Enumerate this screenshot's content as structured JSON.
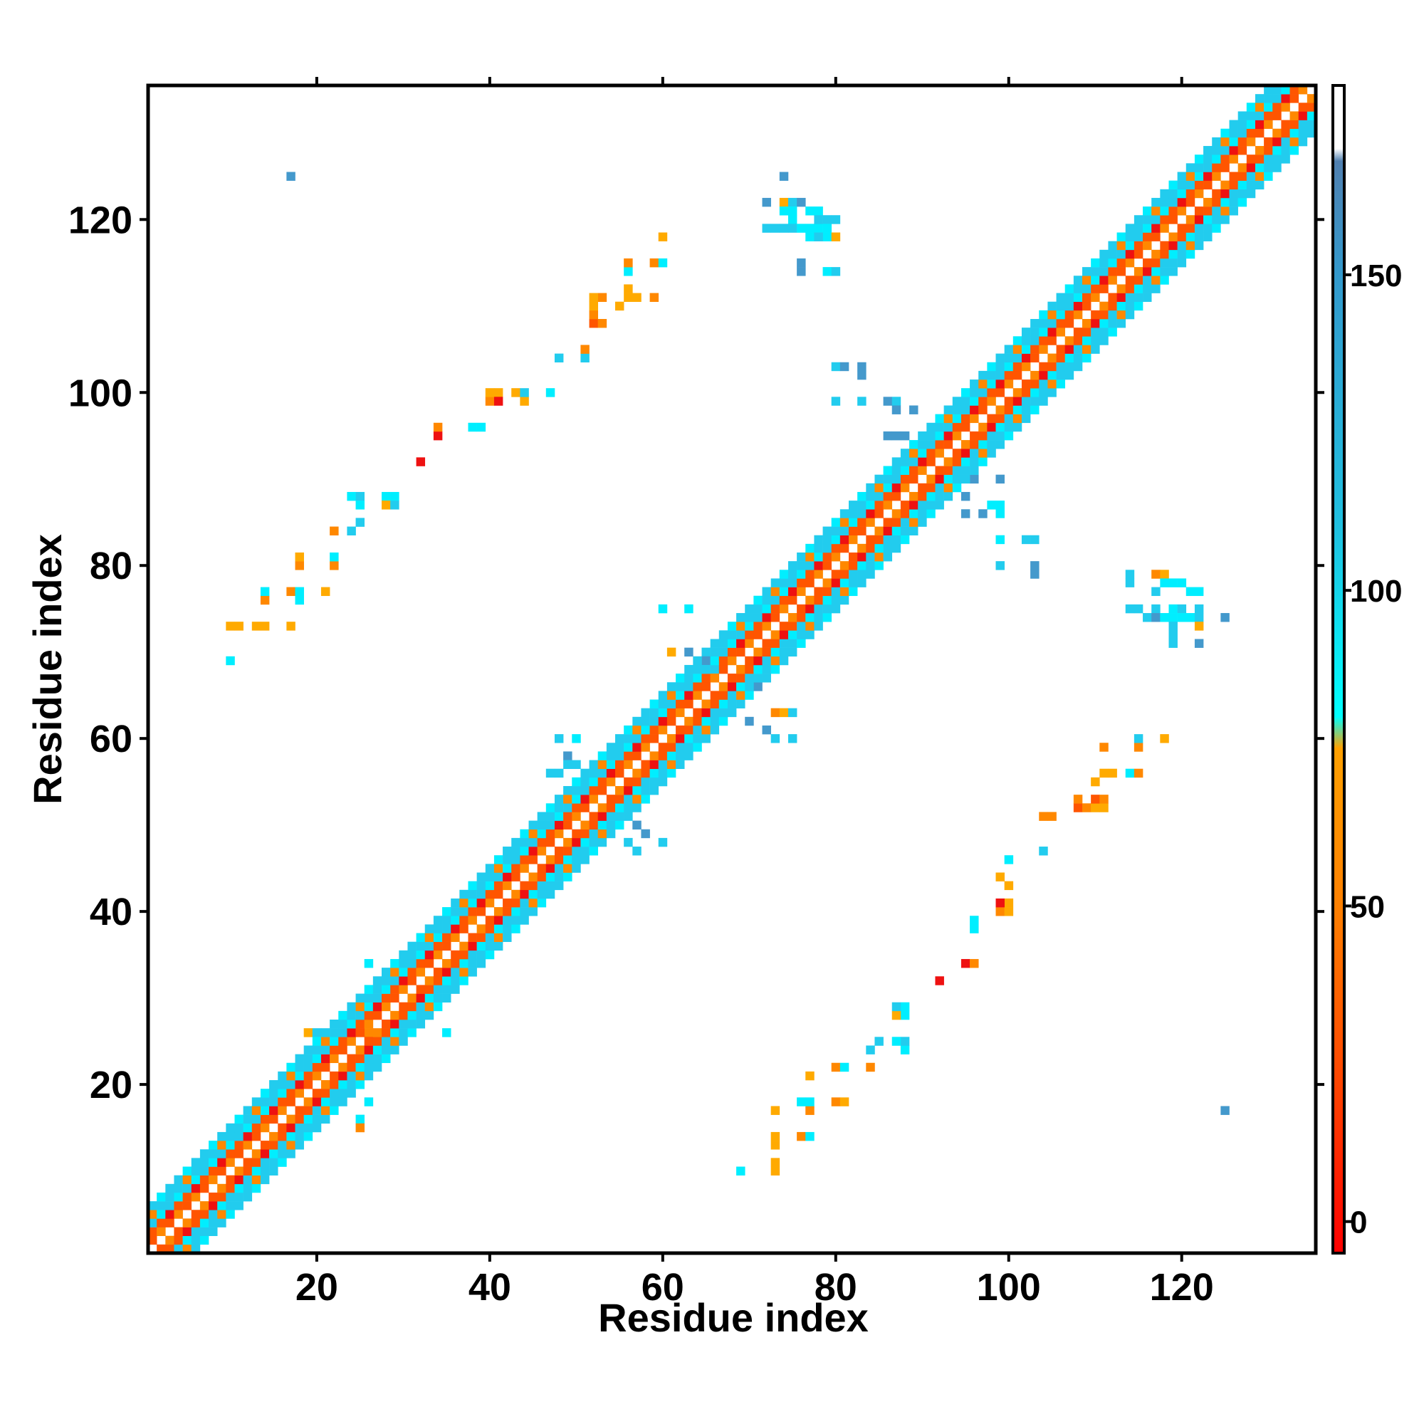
{
  "chart_data": {
    "type": "heatmap",
    "title": "",
    "xlabel": "Residue index",
    "ylabel": "Residue index",
    "xlim": [
      1,
      135
    ],
    "ylim": [
      1,
      135
    ],
    "xticks": [
      20,
      40,
      60,
      80,
      100,
      120
    ],
    "yticks": [
      20,
      40,
      60,
      80,
      100,
      120
    ],
    "grid": false,
    "colorbar": {
      "ticks": [
        0,
        50,
        100,
        150
      ],
      "range": [
        -5,
        180
      ],
      "stops": [
        {
          "value": -5,
          "color": "#ff0000"
        },
        {
          "value": 20,
          "color": "#ff4000"
        },
        {
          "value": 50,
          "color": "#ff8000"
        },
        {
          "value": 75,
          "color": "#ffa000"
        },
        {
          "value": 80,
          "color": "#00ffff"
        },
        {
          "value": 110,
          "color": "#20c0e0"
        },
        {
          "value": 150,
          "color": "#3399cc"
        },
        {
          "value": 168,
          "color": "#5080b0"
        },
        {
          "value": 170,
          "color": "#ffffff"
        },
        {
          "value": 180,
          "color": "#ffffff"
        }
      ]
    },
    "colors": {
      "red": "#ee1111",
      "orange_red": "#ff5500",
      "orange": "#ff8800",
      "amber": "#ffaa00",
      "cyan": "#00eeff",
      "sky": "#22ccee",
      "steel": "#4499cc"
    },
    "diagonal_band": {
      "description_values": "contacts within |i-j| <= 5, alternating orange/red and cyan",
      "x_range": [
        1,
        135
      ]
    },
    "offdiagonal_contacts": [
      {
        "x": 10,
        "y": 73,
        "c": "amber"
      },
      {
        "x": 11,
        "y": 73,
        "c": "amber"
      },
      {
        "x": 13,
        "y": 73,
        "c": "amber"
      },
      {
        "x": 14,
        "y": 73,
        "c": "amber"
      },
      {
        "x": 17,
        "y": 73,
        "c": "amber"
      },
      {
        "x": 10,
        "y": 69,
        "c": "cyan"
      },
      {
        "x": 14,
        "y": 76,
        "c": "orange"
      },
      {
        "x": 14,
        "y": 77,
        "c": "cyan"
      },
      {
        "x": 17,
        "y": 77,
        "c": "orange"
      },
      {
        "x": 18,
        "y": 77,
        "c": "cyan"
      },
      {
        "x": 18,
        "y": 76,
        "c": "cyan"
      },
      {
        "x": 18,
        "y": 80,
        "c": "orange"
      },
      {
        "x": 18,
        "y": 81,
        "c": "amber"
      },
      {
        "x": 21,
        "y": 77,
        "c": "amber"
      },
      {
        "x": 22,
        "y": 80,
        "c": "orange"
      },
      {
        "x": 22,
        "y": 81,
        "c": "cyan"
      },
      {
        "x": 22,
        "y": 84,
        "c": "orange"
      },
      {
        "x": 24,
        "y": 84,
        "c": "sky"
      },
      {
        "x": 25,
        "y": 85,
        "c": "sky"
      },
      {
        "x": 24,
        "y": 88,
        "c": "cyan"
      },
      {
        "x": 25,
        "y": 88,
        "c": "sky"
      },
      {
        "x": 25,
        "y": 87,
        "c": "cyan"
      },
      {
        "x": 28,
        "y": 88,
        "c": "cyan"
      },
      {
        "x": 29,
        "y": 88,
        "c": "cyan"
      },
      {
        "x": 28,
        "y": 87,
        "c": "amber"
      },
      {
        "x": 29,
        "y": 87,
        "c": "sky"
      },
      {
        "x": 32,
        "y": 92,
        "c": "red"
      },
      {
        "x": 34,
        "y": 95,
        "c": "red"
      },
      {
        "x": 34,
        "y": 96,
        "c": "orange"
      },
      {
        "x": 38,
        "y": 96,
        "c": "cyan"
      },
      {
        "x": 39,
        "y": 96,
        "c": "cyan"
      },
      {
        "x": 40,
        "y": 99,
        "c": "orange"
      },
      {
        "x": 40,
        "y": 100,
        "c": "amber"
      },
      {
        "x": 41,
        "y": 100,
        "c": "amber"
      },
      {
        "x": 41,
        "y": 99,
        "c": "red"
      },
      {
        "x": 43,
        "y": 100,
        "c": "amber"
      },
      {
        "x": 44,
        "y": 99,
        "c": "amber"
      },
      {
        "x": 44,
        "y": 100,
        "c": "sky"
      },
      {
        "x": 47,
        "y": 100,
        "c": "cyan"
      },
      {
        "x": 48,
        "y": 104,
        "c": "sky"
      },
      {
        "x": 51,
        "y": 104,
        "c": "sky"
      },
      {
        "x": 51,
        "y": 105,
        "c": "orange"
      },
      {
        "x": 52,
        "y": 108,
        "c": "orange-red"
      },
      {
        "x": 53,
        "y": 108,
        "c": "orange"
      },
      {
        "x": 52,
        "y": 109,
        "c": "orange"
      },
      {
        "x": 52,
        "y": 110,
        "c": "amber"
      },
      {
        "x": 53,
        "y": 111,
        "c": "orange"
      },
      {
        "x": 52,
        "y": 111,
        "c": "amber"
      },
      {
        "x": 55,
        "y": 110,
        "c": "amber"
      },
      {
        "x": 56,
        "y": 111,
        "c": "amber"
      },
      {
        "x": 56,
        "y": 112,
        "c": "amber"
      },
      {
        "x": 56,
        "y": 114,
        "c": "cyan"
      },
      {
        "x": 56,
        "y": 115,
        "c": "orange"
      },
      {
        "x": 57,
        "y": 111,
        "c": "amber"
      },
      {
        "x": 59,
        "y": 111,
        "c": "orange"
      },
      {
        "x": 59,
        "y": 115,
        "c": "orange"
      },
      {
        "x": 60,
        "y": 115,
        "c": "cyan"
      },
      {
        "x": 60,
        "y": 118,
        "c": "amber"
      },
      {
        "x": 17,
        "y": 125,
        "c": "steel"
      },
      {
        "x": 72,
        "y": 122,
        "c": "steel"
      },
      {
        "x": 74,
        "y": 125,
        "c": "steel"
      },
      {
        "x": 74,
        "y": 122,
        "c": "amber"
      },
      {
        "x": 75,
        "y": 122,
        "c": "sky"
      },
      {
        "x": 76,
        "y": 122,
        "c": "steel"
      },
      {
        "x": 74,
        "y": 121,
        "c": "cyan"
      },
      {
        "x": 75,
        "y": 121,
        "c": "cyan"
      },
      {
        "x": 77,
        "y": 121,
        "c": "cyan"
      },
      {
        "x": 78,
        "y": 121,
        "c": "cyan"
      },
      {
        "x": 75,
        "y": 120,
        "c": "cyan"
      },
      {
        "x": 79,
        "y": 120,
        "c": "sky"
      },
      {
        "x": 72,
        "y": 119,
        "c": "sky"
      },
      {
        "x": 73,
        "y": 119,
        "c": "sky"
      },
      {
        "x": 74,
        "y": 119,
        "c": "sky"
      },
      {
        "x": 75,
        "y": 119,
        "c": "sky"
      },
      {
        "x": 76,
        "y": 119,
        "c": "cyan"
      },
      {
        "x": 77,
        "y": 119,
        "c": "cyan"
      },
      {
        "x": 78,
        "y": 119,
        "c": "cyan"
      },
      {
        "x": 79,
        "y": 119,
        "c": "cyan"
      },
      {
        "x": 77,
        "y": 118,
        "c": "cyan"
      },
      {
        "x": 79,
        "y": 118,
        "c": "cyan"
      },
      {
        "x": 80,
        "y": 118,
        "c": "amber"
      },
      {
        "x": 78,
        "y": 118,
        "c": "sky"
      },
      {
        "x": 76,
        "y": 115,
        "c": "steel"
      },
      {
        "x": 76,
        "y": 114,
        "c": "steel"
      },
      {
        "x": 79,
        "y": 114,
        "c": "cyan"
      },
      {
        "x": 80,
        "y": 114,
        "c": "sky"
      },
      {
        "x": 80,
        "y": 120,
        "c": "sky"
      },
      {
        "x": 78,
        "y": 120,
        "c": "sky"
      },
      {
        "x": 80,
        "y": 103,
        "c": "sky"
      },
      {
        "x": 81,
        "y": 103,
        "c": "steel"
      },
      {
        "x": 83,
        "y": 103,
        "c": "steel"
      },
      {
        "x": 83,
        "y": 102,
        "c": "steel"
      },
      {
        "x": 80,
        "y": 99,
        "c": "sky"
      },
      {
        "x": 83,
        "y": 99,
        "c": "sky"
      },
      {
        "x": 86,
        "y": 99,
        "c": "steel"
      },
      {
        "x": 87,
        "y": 99,
        "c": "sky"
      },
      {
        "x": 87,
        "y": 98,
        "c": "steel"
      },
      {
        "x": 89,
        "y": 98,
        "c": "steel"
      },
      {
        "x": 86,
        "y": 95,
        "c": "steel"
      },
      {
        "x": 87,
        "y": 95,
        "c": "steel"
      },
      {
        "x": 88,
        "y": 95,
        "c": "steel"
      },
      {
        "x": 96,
        "y": 90,
        "c": "steel"
      },
      {
        "x": 99,
        "y": 90,
        "c": "steel"
      },
      {
        "x": 95,
        "y": 88,
        "c": "steel"
      },
      {
        "x": 98,
        "y": 87,
        "c": "cyan"
      },
      {
        "x": 99,
        "y": 87,
        "c": "cyan"
      },
      {
        "x": 95,
        "y": 86,
        "c": "steel"
      },
      {
        "x": 97,
        "y": 86,
        "c": "steel"
      },
      {
        "x": 99,
        "y": 86,
        "c": "cyan"
      },
      {
        "x": 99,
        "y": 83,
        "c": "cyan"
      },
      {
        "x": 102,
        "y": 83,
        "c": "sky"
      },
      {
        "x": 103,
        "y": 83,
        "c": "sky"
      },
      {
        "x": 99,
        "y": 80,
        "c": "sky"
      },
      {
        "x": 103,
        "y": 80,
        "c": "steel"
      },
      {
        "x": 103,
        "y": 79,
        "c": "steel"
      },
      {
        "x": 114,
        "y": 79,
        "c": "sky"
      },
      {
        "x": 117,
        "y": 79,
        "c": "orange"
      },
      {
        "x": 118,
        "y": 79,
        "c": "amber"
      },
      {
        "x": 114,
        "y": 78,
        "c": "sky"
      },
      {
        "x": 118,
        "y": 78,
        "c": "cyan"
      },
      {
        "x": 119,
        "y": 78,
        "c": "cyan"
      },
      {
        "x": 120,
        "y": 78,
        "c": "cyan"
      },
      {
        "x": 117,
        "y": 77,
        "c": "sky"
      },
      {
        "x": 121,
        "y": 77,
        "c": "cyan"
      },
      {
        "x": 122,
        "y": 77,
        "c": "cyan"
      },
      {
        "x": 114,
        "y": 75,
        "c": "sky"
      },
      {
        "x": 115,
        "y": 75,
        "c": "sky"
      },
      {
        "x": 117,
        "y": 75,
        "c": "sky"
      },
      {
        "x": 119,
        "y": 75,
        "c": "cyan"
      },
      {
        "x": 120,
        "y": 75,
        "c": "sky"
      },
      {
        "x": 122,
        "y": 75,
        "c": "sky"
      },
      {
        "x": 116,
        "y": 74,
        "c": "sky"
      },
      {
        "x": 117,
        "y": 74,
        "c": "steel"
      },
      {
        "x": 118,
        "y": 74,
        "c": "cyan"
      },
      {
        "x": 119,
        "y": 74,
        "c": "cyan"
      },
      {
        "x": 120,
        "y": 74,
        "c": "cyan"
      },
      {
        "x": 121,
        "y": 74,
        "c": "cyan"
      },
      {
        "x": 122,
        "y": 74,
        "c": "sky"
      },
      {
        "x": 125,
        "y": 74,
        "c": "steel"
      },
      {
        "x": 119,
        "y": 73,
        "c": "sky"
      },
      {
        "x": 122,
        "y": 73,
        "c": "amber"
      },
      {
        "x": 119,
        "y": 72,
        "c": "sky"
      },
      {
        "x": 119,
        "y": 71,
        "c": "sky"
      },
      {
        "x": 122,
        "y": 71,
        "c": "steel"
      },
      {
        "x": 63,
        "y": 70,
        "c": "steel"
      },
      {
        "x": 60,
        "y": 75,
        "c": "cyan"
      },
      {
        "x": 63,
        "y": 75,
        "c": "cyan"
      },
      {
        "x": 61,
        "y": 70,
        "c": "amber"
      },
      {
        "x": 65,
        "y": 70,
        "c": "sky"
      },
      {
        "x": 65,
        "y": 69,
        "c": "steel"
      },
      {
        "x": 66,
        "y": 68,
        "c": "sky"
      },
      {
        "x": 71,
        "y": 66,
        "c": "steel"
      },
      {
        "x": 70,
        "y": 62,
        "c": "steel"
      },
      {
        "x": 72,
        "y": 61,
        "c": "steel"
      },
      {
        "x": 73,
        "y": 63,
        "c": "orange"
      },
      {
        "x": 74,
        "y": 63,
        "c": "amber"
      },
      {
        "x": 75,
        "y": 63,
        "c": "sky"
      },
      {
        "x": 73,
        "y": 60,
        "c": "sky"
      },
      {
        "x": 75,
        "y": 60,
        "c": "sky"
      },
      {
        "x": 48,
        "y": 60,
        "c": "sky"
      },
      {
        "x": 50,
        "y": 60,
        "c": "cyan"
      },
      {
        "x": 49,
        "y": 58,
        "c": "steel"
      },
      {
        "x": 47,
        "y": 56,
        "c": "sky"
      },
      {
        "x": 48,
        "y": 56,
        "c": "sky"
      },
      {
        "x": 49,
        "y": 57,
        "c": "sky"
      },
      {
        "x": 50,
        "y": 57,
        "c": "sky"
      },
      {
        "x": 57,
        "y": 50,
        "c": "steel"
      },
      {
        "x": 58,
        "y": 49,
        "c": "steel"
      },
      {
        "x": 60,
        "y": 48,
        "c": "sky"
      },
      {
        "x": 57,
        "y": 47,
        "c": "sky"
      },
      {
        "x": 56,
        "y": 48,
        "c": "sky"
      },
      {
        "x": 26,
        "y": 26,
        "c": "orange"
      },
      {
        "x": 19,
        "y": 26,
        "c": "amber"
      },
      {
        "x": 20,
        "y": 26,
        "c": "sky"
      },
      {
        "x": 26,
        "y": 34,
        "c": "cyan"
      },
      {
        "x": 35,
        "y": 26,
        "c": "cyan"
      },
      {
        "x": 26,
        "y": 18,
        "c": "cyan"
      },
      {
        "x": 25,
        "y": 16,
        "c": "cyan"
      },
      {
        "x": 25,
        "y": 15,
        "c": "orange"
      },
      {
        "x": 73,
        "y": 10,
        "c": "amber"
      },
      {
        "x": 73,
        "y": 11,
        "c": "amber"
      },
      {
        "x": 73,
        "y": 13,
        "c": "amber"
      },
      {
        "x": 73,
        "y": 14,
        "c": "amber"
      },
      {
        "x": 73,
        "y": 17,
        "c": "amber"
      },
      {
        "x": 69,
        "y": 10,
        "c": "cyan"
      },
      {
        "x": 76,
        "y": 14,
        "c": "orange"
      },
      {
        "x": 77,
        "y": 14,
        "c": "cyan"
      },
      {
        "x": 77,
        "y": 17,
        "c": "orange"
      },
      {
        "x": 77,
        "y": 18,
        "c": "cyan"
      },
      {
        "x": 76,
        "y": 18,
        "c": "cyan"
      },
      {
        "x": 80,
        "y": 18,
        "c": "orange"
      },
      {
        "x": 81,
        "y": 18,
        "c": "amber"
      },
      {
        "x": 77,
        "y": 21,
        "c": "amber"
      },
      {
        "x": 80,
        "y": 22,
        "c": "orange"
      },
      {
        "x": 81,
        "y": 22,
        "c": "cyan"
      },
      {
        "x": 84,
        "y": 22,
        "c": "orange"
      },
      {
        "x": 84,
        "y": 24,
        "c": "sky"
      },
      {
        "x": 85,
        "y": 25,
        "c": "sky"
      },
      {
        "x": 88,
        "y": 24,
        "c": "cyan"
      },
      {
        "x": 88,
        "y": 25,
        "c": "sky"
      },
      {
        "x": 87,
        "y": 25,
        "c": "cyan"
      },
      {
        "x": 88,
        "y": 28,
        "c": "cyan"
      },
      {
        "x": 88,
        "y": 29,
        "c": "cyan"
      },
      {
        "x": 87,
        "y": 28,
        "c": "amber"
      },
      {
        "x": 87,
        "y": 29,
        "c": "sky"
      },
      {
        "x": 92,
        "y": 32,
        "c": "red"
      },
      {
        "x": 95,
        "y": 34,
        "c": "red"
      },
      {
        "x": 96,
        "y": 34,
        "c": "orange"
      },
      {
        "x": 96,
        "y": 38,
        "c": "cyan"
      },
      {
        "x": 96,
        "y": 39,
        "c": "cyan"
      },
      {
        "x": 99,
        "y": 40,
        "c": "orange"
      },
      {
        "x": 100,
        "y": 40,
        "c": "amber"
      },
      {
        "x": 100,
        "y": 41,
        "c": "amber"
      },
      {
        "x": 99,
        "y": 41,
        "c": "red"
      },
      {
        "x": 100,
        "y": 43,
        "c": "amber"
      },
      {
        "x": 99,
        "y": 44,
        "c": "amber"
      },
      {
        "x": 100,
        "y": 46,
        "c": "cyan"
      },
      {
        "x": 104,
        "y": 47,
        "c": "sky"
      },
      {
        "x": 104,
        "y": 51,
        "c": "orange"
      },
      {
        "x": 105,
        "y": 51,
        "c": "orange"
      },
      {
        "x": 108,
        "y": 52,
        "c": "orange-red"
      },
      {
        "x": 109,
        "y": 52,
        "c": "orange"
      },
      {
        "x": 110,
        "y": 52,
        "c": "amber"
      },
      {
        "x": 111,
        "y": 52,
        "c": "amber"
      },
      {
        "x": 108,
        "y": 53,
        "c": "orange"
      },
      {
        "x": 110,
        "y": 53,
        "c": "orange-red"
      },
      {
        "x": 111,
        "y": 53,
        "c": "orange"
      },
      {
        "x": 110,
        "y": 55,
        "c": "amber"
      },
      {
        "x": 111,
        "y": 56,
        "c": "amber"
      },
      {
        "x": 112,
        "y": 56,
        "c": "amber"
      },
      {
        "x": 114,
        "y": 56,
        "c": "cyan"
      },
      {
        "x": 115,
        "y": 56,
        "c": "orange"
      },
      {
        "x": 111,
        "y": 59,
        "c": "orange"
      },
      {
        "x": 115,
        "y": 59,
        "c": "orange"
      },
      {
        "x": 115,
        "y": 60,
        "c": "sky"
      },
      {
        "x": 118,
        "y": 60,
        "c": "amber"
      },
      {
        "x": 125,
        "y": 17,
        "c": "steel"
      }
    ]
  }
}
